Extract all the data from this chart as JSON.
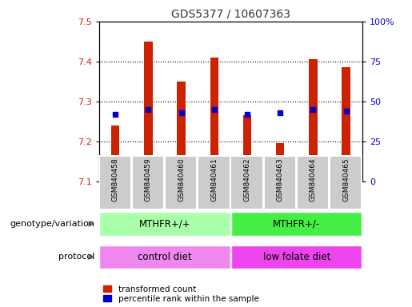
{
  "title": "GDS5377 / 10607363",
  "samples": [
    "GSM840458",
    "GSM840459",
    "GSM840460",
    "GSM840461",
    "GSM840462",
    "GSM840463",
    "GSM840464",
    "GSM840465"
  ],
  "transformed_count": [
    7.24,
    7.45,
    7.35,
    7.41,
    7.265,
    7.195,
    7.405,
    7.385
  ],
  "percentile_rank": [
    42,
    45,
    43,
    45,
    42,
    43,
    45,
    44
  ],
  "ymin": 7.1,
  "ymax": 7.5,
  "yticks": [
    7.1,
    7.2,
    7.3,
    7.4,
    7.5
  ],
  "right_yticks": [
    0,
    25,
    50,
    75,
    100
  ],
  "right_yticklabels": [
    "0",
    "25",
    "50",
    "75",
    "100%"
  ],
  "bar_color": "#cc2200",
  "dot_color": "#0000cc",
  "bar_width": 0.25,
  "genotype_label": "genotype/variation",
  "protocol_label": "protocol",
  "genotype_groups": [
    {
      "label": "MTHFR+/+",
      "start": 0,
      "end": 4,
      "color": "#aaffaa"
    },
    {
      "label": "MTHFR+/-",
      "start": 4,
      "end": 8,
      "color": "#44ee44"
    }
  ],
  "protocol_groups": [
    {
      "label": "control diet",
      "start": 0,
      "end": 4,
      "color": "#ee88ee"
    },
    {
      "label": "low folate diet",
      "start": 4,
      "end": 8,
      "color": "#ee44ee"
    }
  ],
  "legend_red": "transformed count",
  "legend_blue": "percentile rank within the sample",
  "xtick_bg_color": "#cccccc",
  "plot_bg_color": "#ffffff",
  "title_color": "#333333",
  "title_fontsize": 10
}
